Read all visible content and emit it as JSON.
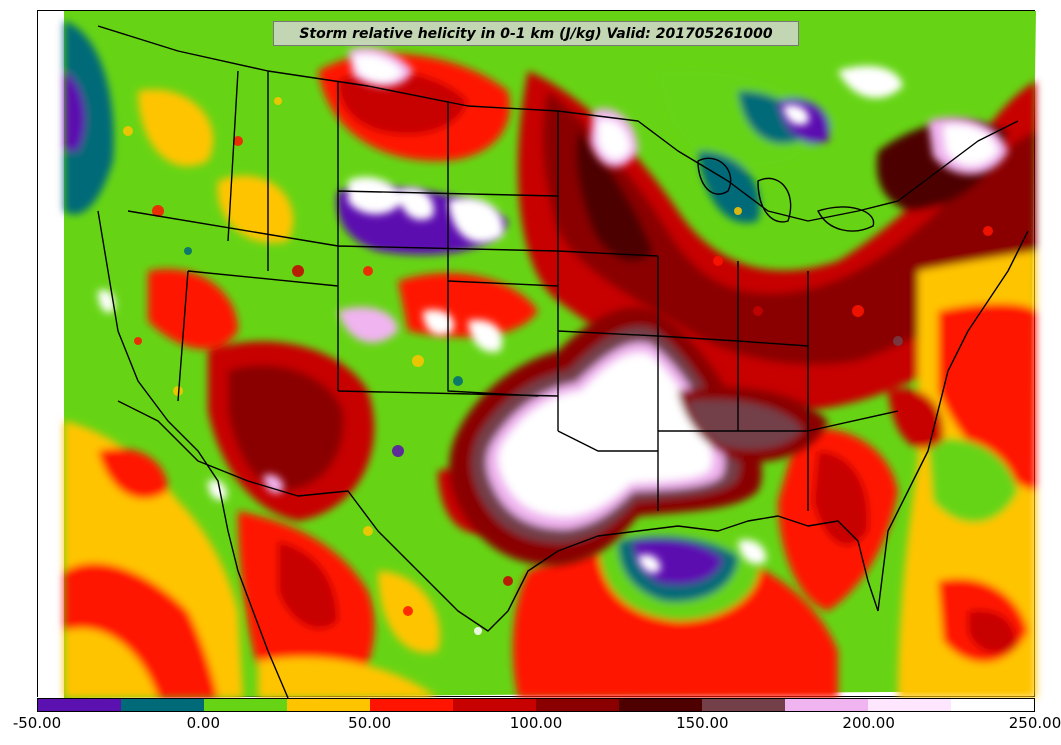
{
  "title": "Storm relative helicity in 0-1 km (J/kg) Valid: 201705261000",
  "colorbar": {
    "ticks": [
      "-50.00",
      "0.00",
      "50.00",
      "100.00",
      "150.00",
      "200.00",
      "250.00"
    ],
    "colors": [
      "#5b10b0",
      "#006a78",
      "#66d414",
      "#ffc400",
      "#ff1400",
      "#c70000",
      "#8a0000",
      "#4e0000",
      "#73404a",
      "#f0b4f0",
      "#ffe6ff",
      "#ffffff"
    ]
  }
}
